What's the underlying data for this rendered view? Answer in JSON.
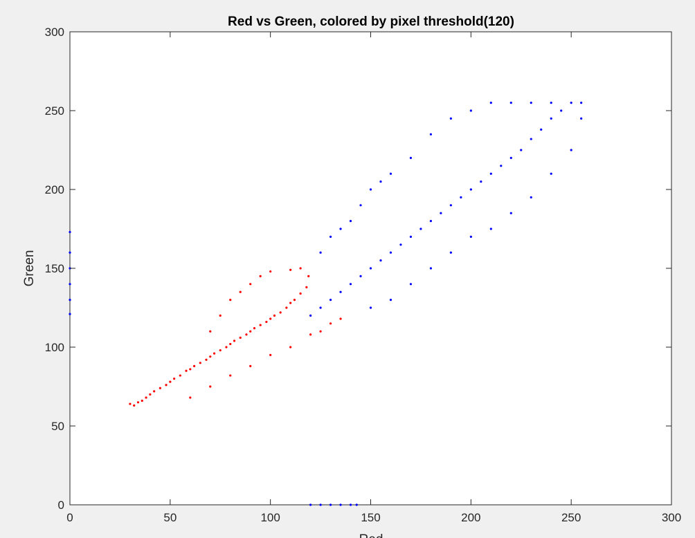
{
  "chart_data": {
    "type": "scatter",
    "title": "Red vs Green, colored by pixel threshold(120)",
    "xlabel": "Red",
    "ylabel": "Green",
    "xlim": [
      0,
      300
    ],
    "ylim": [
      0,
      300
    ],
    "xticks": [
      "0",
      "50",
      "100",
      "150",
      "200",
      "250",
      "300"
    ],
    "yticks": [
      "0",
      "50",
      "100",
      "150",
      "200",
      "250",
      "300"
    ],
    "grid": false,
    "threshold": 120,
    "colors": {
      "below": "#ff0000",
      "above": "#0000ff",
      "background": "#ffffff",
      "figure": "#f0f0f0"
    },
    "series": [
      {
        "color": "#ff0000",
        "description_range": {
          "x": [
            28,
            135
          ],
          "y": [
            60,
            150
          ]
        },
        "points": [
          [
            30,
            64
          ],
          [
            32,
            63
          ],
          [
            34,
            65
          ],
          [
            36,
            66
          ],
          [
            38,
            68
          ],
          [
            40,
            70
          ],
          [
            42,
            72
          ],
          [
            45,
            74
          ],
          [
            48,
            76
          ],
          [
            50,
            78
          ],
          [
            52,
            80
          ],
          [
            55,
            82
          ],
          [
            58,
            85
          ],
          [
            60,
            86
          ],
          [
            62,
            88
          ],
          [
            65,
            90
          ],
          [
            68,
            92
          ],
          [
            70,
            94
          ],
          [
            72,
            96
          ],
          [
            75,
            98
          ],
          [
            78,
            100
          ],
          [
            80,
            102
          ],
          [
            82,
            104
          ],
          [
            85,
            106
          ],
          [
            88,
            108
          ],
          [
            90,
            110
          ],
          [
            92,
            112
          ],
          [
            95,
            114
          ],
          [
            98,
            116
          ],
          [
            100,
            118
          ],
          [
            102,
            120
          ],
          [
            105,
            122
          ],
          [
            108,
            125
          ],
          [
            110,
            128
          ],
          [
            112,
            130
          ],
          [
            115,
            134
          ],
          [
            118,
            138
          ],
          [
            119,
            145
          ],
          [
            70,
            110
          ],
          [
            75,
            120
          ],
          [
            80,
            130
          ],
          [
            85,
            135
          ],
          [
            90,
            140
          ],
          [
            95,
            145
          ],
          [
            100,
            148
          ],
          [
            110,
            149
          ],
          [
            115,
            150
          ],
          [
            60,
            68
          ],
          [
            70,
            75
          ],
          [
            80,
            82
          ],
          [
            90,
            88
          ],
          [
            100,
            95
          ],
          [
            110,
            100
          ],
          [
            120,
            108
          ],
          [
            125,
            110
          ],
          [
            130,
            115
          ],
          [
            135,
            118
          ]
        ]
      },
      {
        "color": "#0000ff",
        "description_range": {
          "x": [
            120,
            255
          ],
          "y": [
            120,
            255
          ]
        },
        "points": [
          [
            120,
            120
          ],
          [
            125,
            125
          ],
          [
            130,
            130
          ],
          [
            135,
            135
          ],
          [
            140,
            140
          ],
          [
            145,
            145
          ],
          [
            150,
            150
          ],
          [
            155,
            155
          ],
          [
            160,
            160
          ],
          [
            165,
            165
          ],
          [
            170,
            170
          ],
          [
            175,
            175
          ],
          [
            180,
            180
          ],
          [
            185,
            185
          ],
          [
            190,
            190
          ],
          [
            195,
            195
          ],
          [
            200,
            200
          ],
          [
            205,
            205
          ],
          [
            210,
            210
          ],
          [
            215,
            215
          ],
          [
            220,
            220
          ],
          [
            225,
            225
          ],
          [
            230,
            232
          ],
          [
            235,
            238
          ],
          [
            240,
            245
          ],
          [
            245,
            250
          ],
          [
            250,
            255
          ],
          [
            255,
            255
          ],
          [
            125,
            160
          ],
          [
            130,
            170
          ],
          [
            135,
            175
          ],
          [
            140,
            180
          ],
          [
            145,
            190
          ],
          [
            150,
            200
          ],
          [
            155,
            205
          ],
          [
            160,
            210
          ],
          [
            170,
            220
          ],
          [
            180,
            235
          ],
          [
            190,
            245
          ],
          [
            200,
            250
          ],
          [
            210,
            255
          ],
          [
            220,
            255
          ],
          [
            230,
            255
          ],
          [
            240,
            255
          ],
          [
            150,
            125
          ],
          [
            160,
            130
          ],
          [
            170,
            140
          ],
          [
            180,
            150
          ],
          [
            190,
            160
          ],
          [
            200,
            170
          ],
          [
            210,
            175
          ],
          [
            220,
            185
          ],
          [
            230,
            195
          ],
          [
            240,
            210
          ],
          [
            250,
            225
          ],
          [
            255,
            245
          ],
          [
            0,
            121
          ],
          [
            0,
            130
          ],
          [
            0,
            140
          ],
          [
            0,
            150
          ],
          [
            0,
            160
          ],
          [
            0,
            173
          ],
          [
            120,
            0
          ],
          [
            125,
            0
          ],
          [
            130,
            0
          ],
          [
            135,
            0
          ],
          [
            140,
            0
          ],
          [
            143,
            0
          ]
        ]
      }
    ]
  }
}
